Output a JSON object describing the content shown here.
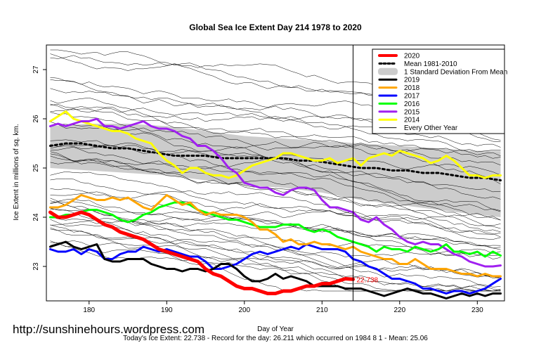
{
  "chart_data": {
    "type": "line",
    "title": "Global Sea Ice Extent Day 214 1978 to 2020",
    "xlabel": "Day of Year",
    "ylabel": "Ice Extent in millions of sq. km.",
    "xlim": [
      174.5,
      233.5
    ],
    "ylim": [
      22.3,
      27.5
    ],
    "x_ticks": [
      180,
      190,
      200,
      210,
      220,
      230
    ],
    "y_ticks": [
      23,
      24,
      25,
      26,
      27
    ],
    "current_day": 214,
    "current_value_label": "22.738",
    "legend": [
      {
        "label": "2020",
        "color": "#ff0000",
        "style": "solid",
        "width": 4
      },
      {
        "label": "Mean 1981-2010",
        "color": "#000000",
        "style": "dotted",
        "width": 3
      },
      {
        "label": "1 Standard Deviation From Mean",
        "color": "#cccccc",
        "style": "band",
        "width": 10
      },
      {
        "label": "2019",
        "color": "#000000",
        "style": "solid",
        "width": 3
      },
      {
        "label": "2018",
        "color": "#ffa500",
        "style": "solid",
        "width": 3
      },
      {
        "label": "2017",
        "color": "#0000ff",
        "style": "solid",
        "width": 3
      },
      {
        "label": "2016",
        "color": "#00ff00",
        "style": "solid",
        "width": 3
      },
      {
        "label": "2015",
        "color": "#a020f0",
        "style": "solid",
        "width": 3
      },
      {
        "label": "2014",
        "color": "#ffff00",
        "style": "solid",
        "width": 3
      },
      {
        "label": "Every Other Year",
        "color": "#000000",
        "style": "solid",
        "width": 1
      }
    ],
    "band": {
      "x": [
        175,
        180,
        185,
        190,
        195,
        200,
        205,
        210,
        215,
        220,
        225,
        230,
        233
      ],
      "upper": [
        25.85,
        25.9,
        25.9,
        25.85,
        25.75,
        25.65,
        25.6,
        25.55,
        25.5,
        25.45,
        25.4,
        25.35,
        25.35
      ],
      "lower": [
        25.0,
        24.95,
        24.9,
        24.85,
        24.75,
        24.65,
        24.6,
        24.5,
        24.35,
        24.25,
        24.15,
        24.05,
        24.0
      ]
    },
    "series": [
      {
        "name": "Mean 1981-2010",
        "color": "#000000",
        "width": 3,
        "dash": "3,4",
        "x": [
          175,
          177,
          179,
          181,
          183,
          185,
          187,
          189,
          191,
          193,
          195,
          197,
          199,
          201,
          203,
          205,
          207,
          209,
          211,
          213,
          215,
          217,
          219,
          221,
          223,
          225,
          227,
          229,
          231,
          233
        ],
        "y": [
          25.45,
          25.5,
          25.5,
          25.45,
          25.4,
          25.4,
          25.35,
          25.3,
          25.25,
          25.25,
          25.25,
          25.2,
          25.2,
          25.2,
          25.2,
          25.2,
          25.15,
          25.15,
          25.1,
          25.05,
          25.0,
          25.0,
          24.95,
          24.95,
          24.9,
          24.9,
          24.85,
          24.8,
          24.8,
          24.75
        ]
      },
      {
        "name": "2014",
        "color": "#ffff00",
        "width": 3,
        "x": [
          175,
          176,
          177,
          178,
          179,
          180,
          181,
          182,
          183,
          184,
          185,
          186,
          187,
          188,
          189,
          190,
          191,
          192,
          193,
          194,
          195,
          196,
          197,
          198,
          199,
          200,
          201,
          202,
          203,
          204,
          205,
          206,
          207,
          208,
          209,
          210,
          211,
          212,
          213,
          214,
          215,
          216,
          217,
          218,
          219,
          220,
          221,
          222,
          223,
          224,
          225,
          226,
          227,
          228,
          229,
          230,
          231,
          232,
          233
        ],
        "y": [
          25.95,
          26.05,
          26.15,
          26.0,
          25.95,
          25.9,
          25.85,
          25.8,
          25.75,
          25.75,
          25.7,
          25.6,
          25.55,
          25.5,
          25.3,
          25.15,
          25.05,
          24.9,
          25.0,
          25.0,
          24.9,
          24.85,
          24.85,
          24.8,
          24.85,
          24.95,
          25.05,
          25.1,
          25.15,
          25.2,
          25.3,
          25.3,
          25.25,
          25.2,
          25.15,
          25.15,
          25.2,
          25.1,
          25.15,
          25.2,
          25.05,
          25.2,
          25.25,
          25.3,
          25.25,
          25.35,
          25.3,
          25.25,
          25.2,
          25.1,
          25.15,
          25.25,
          25.15,
          25.0,
          24.85,
          24.85,
          24.8,
          24.85,
          24.85
        ]
      },
      {
        "name": "2015",
        "color": "#a020f0",
        "width": 3,
        "x": [
          175,
          176,
          177,
          178,
          179,
          180,
          181,
          182,
          183,
          184,
          185,
          186,
          187,
          188,
          189,
          190,
          191,
          192,
          193,
          194,
          195,
          196,
          197,
          198,
          199,
          200,
          201,
          202,
          203,
          204,
          205,
          206,
          207,
          208,
          209,
          210,
          211,
          212,
          213,
          214,
          215,
          216,
          217,
          218,
          219,
          220,
          221,
          222,
          223,
          224,
          225,
          226,
          227,
          228,
          229,
          230,
          231,
          232,
          233
        ],
        "y": [
          25.85,
          25.9,
          25.85,
          25.9,
          25.95,
          25.95,
          26.0,
          25.85,
          25.85,
          25.8,
          25.85,
          25.9,
          25.95,
          25.85,
          25.8,
          25.8,
          25.75,
          25.65,
          25.6,
          25.45,
          25.45,
          25.35,
          25.2,
          25.0,
          24.9,
          24.7,
          24.65,
          24.6,
          24.6,
          24.5,
          24.45,
          24.55,
          24.6,
          24.6,
          24.55,
          24.35,
          24.2,
          24.2,
          24.15,
          24.1,
          23.95,
          23.9,
          24.0,
          23.85,
          23.75,
          23.6,
          23.5,
          23.45,
          23.5,
          23.45,
          23.45,
          23.35,
          23.25,
          23.2,
          23.1,
          23.05,
          23.0,
          23.0,
          23.02
        ]
      },
      {
        "name": "2016",
        "color": "#00ff00",
        "width": 3,
        "x": [
          175,
          176,
          177,
          178,
          179,
          180,
          181,
          182,
          183,
          184,
          185,
          186,
          187,
          188,
          189,
          190,
          191,
          192,
          193,
          194,
          195,
          196,
          197,
          198,
          199,
          200,
          201,
          202,
          203,
          204,
          205,
          206,
          207,
          208,
          209,
          210,
          211,
          212,
          213,
          214,
          215,
          216,
          217,
          218,
          219,
          220,
          221,
          222,
          223,
          224,
          225,
          226,
          227,
          228,
          229,
          230,
          231,
          232,
          233
        ],
        "y": [
          24.0,
          24.0,
          24.05,
          24.05,
          24.1,
          24.15,
          24.15,
          24.1,
          24.05,
          23.95,
          23.9,
          23.95,
          24.05,
          24.1,
          24.2,
          24.25,
          24.3,
          24.3,
          24.25,
          24.15,
          24.1,
          24.05,
          24.0,
          23.95,
          23.95,
          23.9,
          23.85,
          23.8,
          23.8,
          23.8,
          23.85,
          23.85,
          23.85,
          23.75,
          23.7,
          23.75,
          23.7,
          23.6,
          23.55,
          23.5,
          23.45,
          23.4,
          23.3,
          23.4,
          23.35,
          23.35,
          23.3,
          23.4,
          23.35,
          23.3,
          23.35,
          23.45,
          23.3,
          23.3,
          23.25,
          23.3,
          23.2,
          23.3,
          23.22
        ]
      },
      {
        "name": "2017",
        "color": "#0000ff",
        "width": 3,
        "x": [
          175,
          176,
          177,
          178,
          179,
          180,
          181,
          182,
          183,
          184,
          185,
          186,
          187,
          188,
          189,
          190,
          191,
          192,
          193,
          194,
          195,
          196,
          197,
          198,
          199,
          200,
          201,
          202,
          203,
          204,
          205,
          206,
          207,
          208,
          209,
          210,
          211,
          212,
          213,
          214,
          215,
          216,
          217,
          218,
          219,
          220,
          221,
          222,
          223,
          224,
          225,
          226,
          227,
          228,
          229,
          230,
          231,
          232,
          233
        ],
        "y": [
          23.35,
          23.3,
          23.3,
          23.35,
          23.25,
          23.35,
          23.3,
          23.15,
          23.15,
          23.25,
          23.3,
          23.3,
          23.4,
          23.35,
          23.3,
          23.35,
          23.3,
          23.25,
          23.2,
          23.2,
          23.1,
          22.95,
          22.95,
          23.0,
          23.05,
          23.15,
          23.25,
          23.3,
          23.25,
          23.3,
          23.35,
          23.4,
          23.35,
          23.45,
          23.4,
          23.35,
          23.35,
          23.35,
          23.3,
          23.15,
          23.1,
          23.0,
          22.95,
          22.85,
          22.75,
          22.75,
          22.7,
          22.65,
          22.55,
          22.55,
          22.5,
          22.45,
          22.5,
          22.5,
          22.45,
          22.5,
          22.55,
          22.65,
          22.75
        ]
      },
      {
        "name": "2018",
        "color": "#ffa500",
        "width": 3,
        "x": [
          175,
          176,
          177,
          178,
          179,
          180,
          181,
          182,
          183,
          184,
          185,
          186,
          187,
          188,
          189,
          190,
          191,
          192,
          193,
          194,
          195,
          196,
          197,
          198,
          199,
          200,
          201,
          202,
          203,
          204,
          205,
          206,
          207,
          208,
          209,
          210,
          211,
          212,
          213,
          214,
          215,
          216,
          217,
          218,
          219,
          220,
          221,
          222,
          223,
          224,
          225,
          226,
          227,
          228,
          229,
          230,
          231,
          232,
          233
        ],
        "y": [
          24.2,
          24.2,
          24.25,
          24.35,
          24.45,
          24.4,
          24.35,
          24.35,
          24.4,
          24.35,
          24.4,
          24.3,
          24.2,
          24.15,
          24.3,
          24.45,
          24.35,
          24.25,
          24.3,
          24.15,
          24.05,
          24.1,
          24.05,
          24.05,
          24.05,
          24.0,
          23.9,
          23.75,
          23.75,
          23.65,
          23.5,
          23.55,
          23.45,
          23.45,
          23.5,
          23.45,
          23.45,
          23.4,
          23.35,
          23.4,
          23.3,
          23.25,
          23.2,
          23.15,
          23.15,
          23.05,
          23.05,
          23.15,
          23.05,
          22.95,
          22.95,
          22.95,
          22.9,
          22.85,
          22.85,
          22.8,
          22.85,
          22.8,
          22.8
        ]
      },
      {
        "name": "2019",
        "color": "#000000",
        "width": 3,
        "x": [
          175,
          176,
          177,
          178,
          179,
          180,
          181,
          182,
          183,
          184,
          185,
          186,
          187,
          188,
          189,
          190,
          191,
          192,
          193,
          194,
          195,
          196,
          197,
          198,
          199,
          200,
          201,
          202,
          203,
          204,
          205,
          206,
          207,
          208,
          209,
          210,
          211,
          212,
          213,
          214,
          215,
          216,
          217,
          218,
          219,
          220,
          221,
          222,
          223,
          224,
          225,
          226,
          227,
          228,
          229,
          230,
          231,
          232,
          233
        ],
        "y": [
          23.4,
          23.45,
          23.5,
          23.4,
          23.35,
          23.4,
          23.45,
          23.15,
          23.1,
          23.1,
          23.15,
          23.15,
          23.15,
          23.05,
          23.0,
          22.95,
          22.95,
          22.9,
          22.95,
          22.95,
          22.9,
          22.95,
          23.05,
          23.05,
          22.95,
          22.8,
          22.7,
          22.7,
          22.75,
          22.85,
          22.75,
          22.8,
          22.75,
          22.7,
          22.6,
          22.6,
          22.6,
          22.6,
          22.55,
          22.55,
          22.55,
          22.5,
          22.45,
          22.4,
          22.45,
          22.5,
          22.55,
          22.5,
          22.45,
          22.45,
          22.4,
          22.35,
          22.4,
          22.45,
          22.4,
          22.45,
          22.4,
          22.45,
          22.45
        ]
      },
      {
        "name": "2020",
        "color": "#ff0000",
        "width": 5,
        "x": [
          175,
          176,
          177,
          178,
          179,
          180,
          181,
          182,
          183,
          184,
          185,
          186,
          187,
          188,
          189,
          190,
          191,
          192,
          193,
          194,
          195,
          196,
          197,
          198,
          199,
          200,
          201,
          202,
          203,
          204,
          205,
          206,
          207,
          208,
          209,
          210,
          211,
          212,
          213,
          214
        ],
        "y": [
          24.1,
          24.0,
          24.0,
          24.05,
          24.1,
          24.05,
          23.95,
          23.85,
          23.8,
          23.7,
          23.65,
          23.6,
          23.55,
          23.45,
          23.35,
          23.3,
          23.25,
          23.2,
          23.15,
          23.1,
          22.95,
          22.85,
          22.8,
          22.7,
          22.6,
          22.55,
          22.55,
          22.5,
          22.45,
          22.45,
          22.5,
          22.5,
          22.55,
          22.6,
          22.6,
          22.65,
          22.65,
          22.7,
          22.75,
          22.738
        ]
      }
    ],
    "background_years_count": 40,
    "footer_url": "http://sunshinehours.wordpress.com",
    "footer_text": "Today's Ice Extent: 22.738  - Record for the day: 26.211 which occurred on 1984 8 1  - Mean: 25.06"
  }
}
